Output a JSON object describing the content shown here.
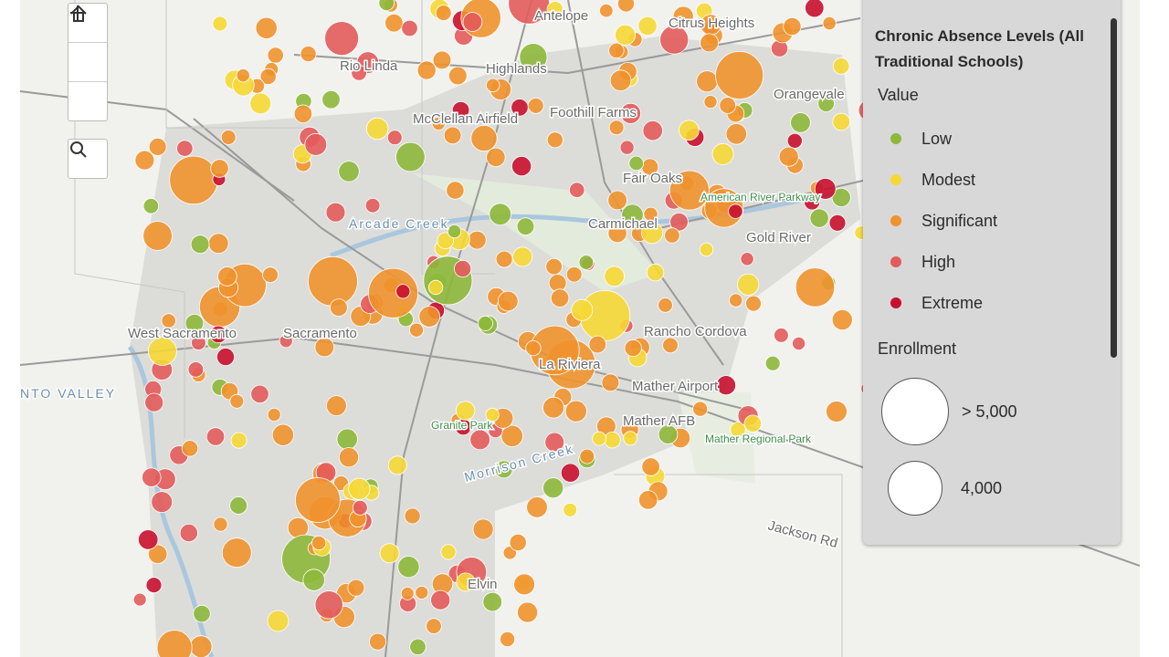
{
  "map": {
    "labels": {
      "antelope": "Antelope",
      "rio_linda": "Rio Linda",
      "highlands": "Highlands",
      "citrus_heights": "Citrus Heights",
      "orangevale": "Orangevale",
      "foothill_farms": "Foothill Farms",
      "mcclellan": "McClellan Airfield",
      "carmichael": "Carmichael",
      "fair_oaks": "Fair Oaks",
      "american_river": "American River Parkway",
      "gold_river": "Gold River",
      "arcade": "Arcade Creek",
      "sacramento": "Sacramento",
      "west_sac": "West Sacramento",
      "rancho_cordova": "Rancho Cordova",
      "la_riviera": "La Riviera",
      "mather_airport": "Mather Airport",
      "mather_afb": "Mather AFB",
      "mather_park": "Mather Regional Park",
      "granite_park": "Granite Park",
      "morrison": "Morrison Creek",
      "jackson": "Jackson Rd",
      "elvin": "Elvin",
      "valley": "NTO VALLEY"
    }
  },
  "legend": {
    "title": "Chronic Absence Levels (All Traditional Schools)",
    "value_heading": "Value",
    "levels": [
      {
        "name": "Low",
        "color": "#8db83a"
      },
      {
        "name": "Modest",
        "color": "#f6d835"
      },
      {
        "name": "Significant",
        "color": "#f0922e"
      },
      {
        "name": "High",
        "color": "#e35b5b"
      },
      {
        "name": "Extreme",
        "color": "#c8102e"
      }
    ],
    "enrollment_heading": "Enrollment",
    "sizes": [
      "> 5,000",
      "4,000"
    ]
  }
}
